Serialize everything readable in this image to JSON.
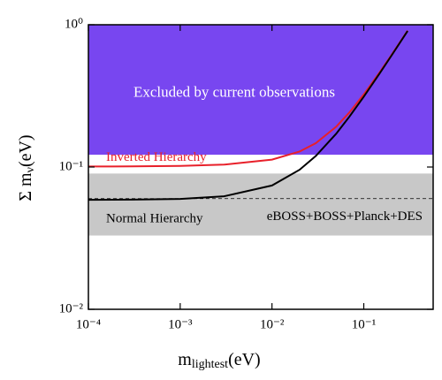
{
  "chart_data": {
    "type": "line",
    "xlabel": {
      "text": "m",
      "sub": "lightest",
      "unit": "(eV)"
    },
    "ylabel": {
      "text": "Σ m",
      "sub": "ν",
      "unit": "(eV)"
    },
    "log_x": true,
    "log_y": true,
    "xlim": [
      0.0001,
      0.57
    ],
    "ylim": [
      0.01,
      1
    ],
    "xticks": [
      {
        "value": 0.0001,
        "label": "10⁻⁴"
      },
      {
        "value": 0.001,
        "label": "10⁻³"
      },
      {
        "value": 0.01,
        "label": "10⁻²"
      },
      {
        "value": 0.1,
        "label": "10⁻¹"
      }
    ],
    "yticks": [
      {
        "value": 0.01,
        "label": "10⁻²"
      },
      {
        "value": 0.1,
        "label": "10⁻¹"
      },
      {
        "value": 1,
        "label": "10⁰"
      }
    ],
    "regions": [
      {
        "label": "Excluded by current observations",
        "range": [
          0.122,
          1
        ],
        "color": "#7846f0"
      },
      {
        "label": "eBOSS+BOSS+Planck+DES",
        "range": [
          0.033,
          0.09
        ],
        "color": "#c8c8c8",
        "dashed_at": 0.06
      }
    ],
    "series": [
      {
        "name": "Inverted Hierarchy",
        "color": "#e8202a",
        "x": [
          0.0001,
          0.0003,
          0.001,
          0.003,
          0.01,
          0.02,
          0.03,
          0.05,
          0.07,
          0.1,
          0.15,
          0.2,
          0.3
        ],
        "values": [
          0.1008,
          0.101,
          0.1018,
          0.1039,
          0.1127,
          0.1284,
          0.1472,
          0.1919,
          0.2424,
          0.324,
          0.4665,
          0.6126,
          0.908
        ]
      },
      {
        "name": "Normal Hierarchy",
        "color": "#000000",
        "x": [
          0.0001,
          0.0003,
          0.001,
          0.003,
          0.01,
          0.02,
          0.03,
          0.05,
          0.07,
          0.1,
          0.15,
          0.2,
          0.3
        ],
        "values": [
          0.0588,
          0.059,
          0.0597,
          0.0623,
          0.0742,
          0.0957,
          0.1195,
          0.1714,
          0.2265,
          0.312,
          0.458,
          0.606,
          0.904
        ]
      }
    ]
  }
}
